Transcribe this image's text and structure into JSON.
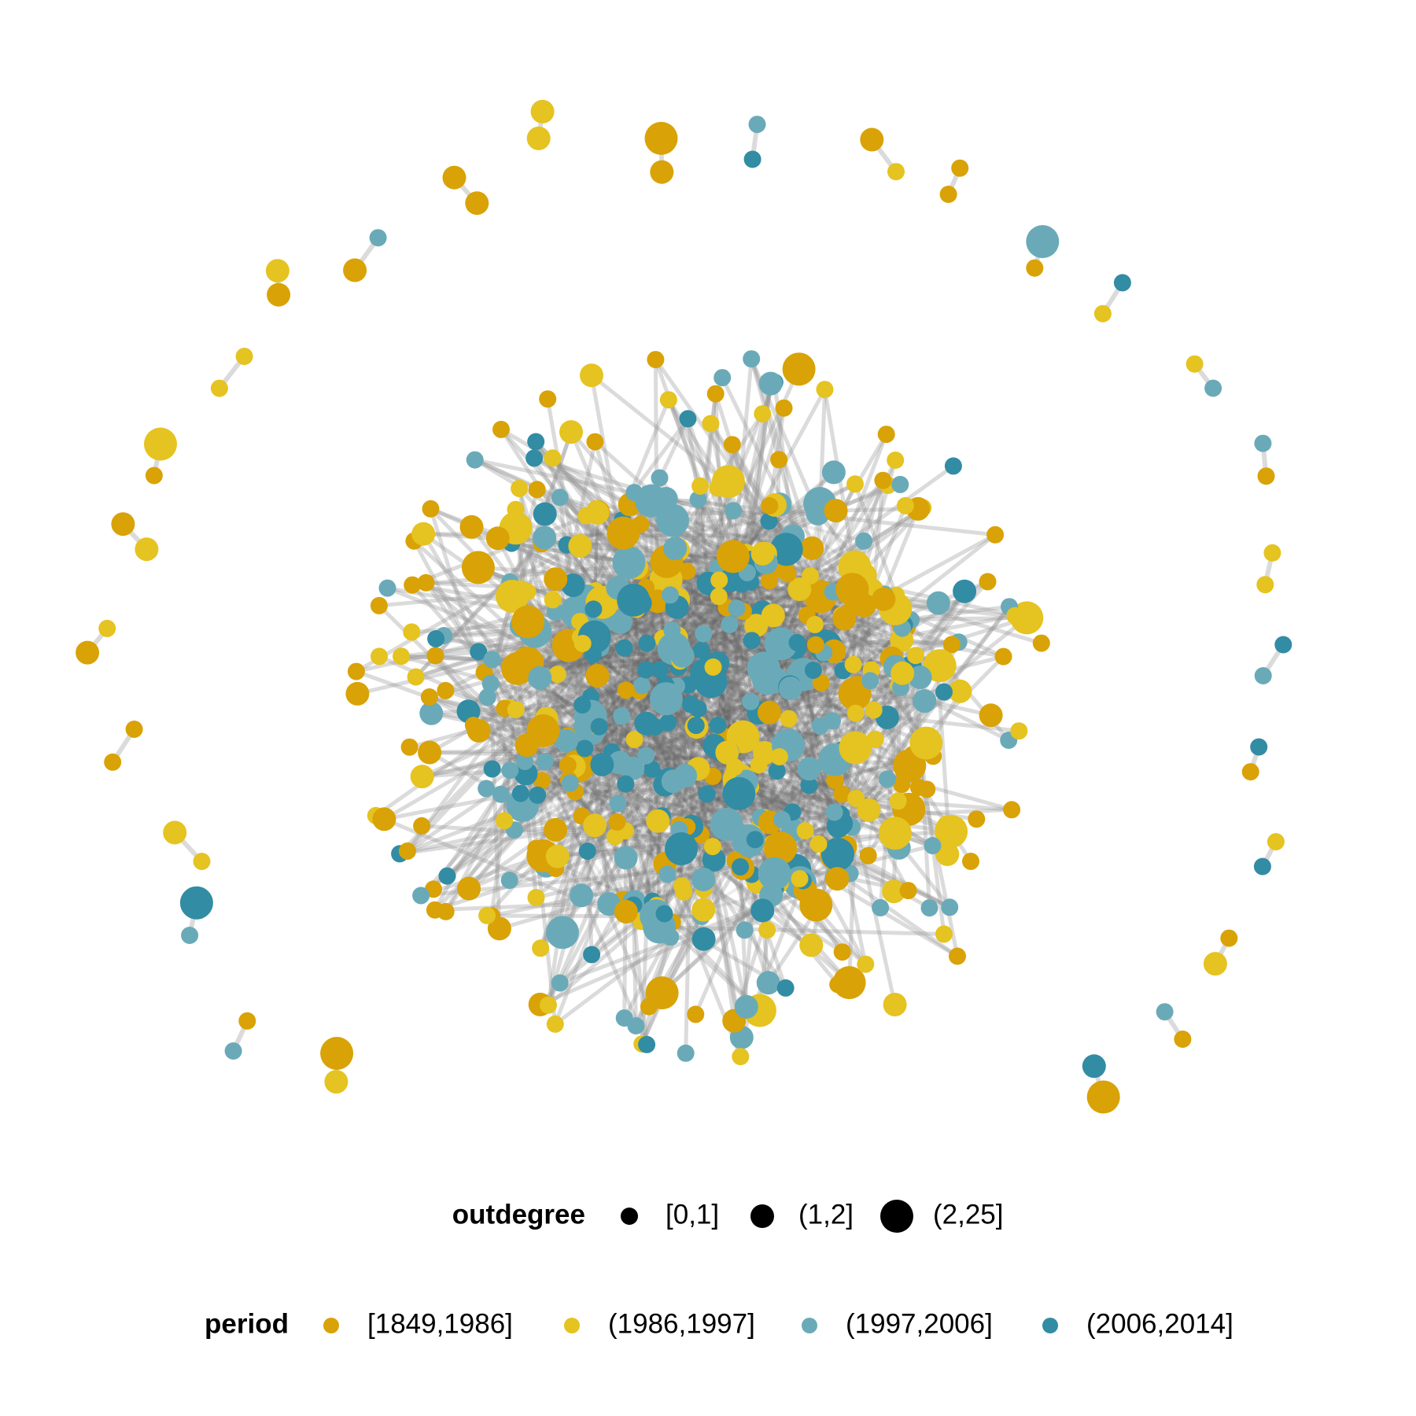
{
  "legends": {
    "outdegree": {
      "title": "outdegree",
      "items": [
        "[0,1]",
        "(1,2]",
        "(2,25]"
      ]
    },
    "period": {
      "title": "period",
      "items": [
        {
          "label": "[1849,1986]",
          "color": "#d9a206"
        },
        {
          "label": "(1986,1997]",
          "color": "#e5c320"
        },
        {
          "label": "(1997,2006]",
          "color": "#6aaab8"
        },
        {
          "label": "(2006,2014]",
          "color": "#328ca4"
        }
      ]
    }
  }
}
